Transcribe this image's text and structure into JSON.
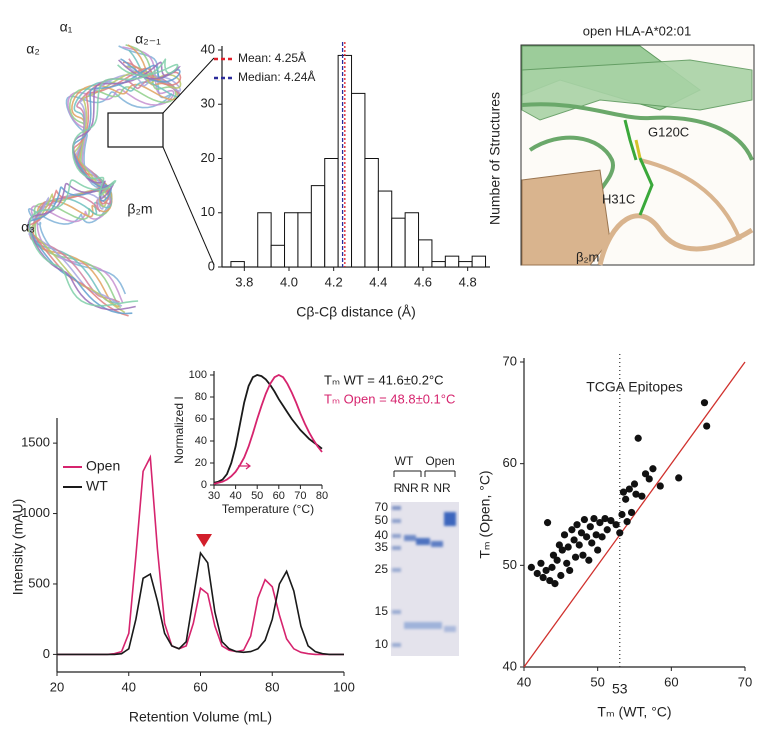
{
  "structure": {
    "labels": [
      "α₁",
      "α₂",
      "α₂₋₁",
      "α₃",
      "β₂m"
    ]
  },
  "closeup": {
    "title": "open HLA-A*02:01",
    "labels": [
      "G120C",
      "H31C",
      "β₂m"
    ]
  },
  "gel": {
    "groups": [
      "WT",
      "Open"
    ],
    "lanes": [
      "R",
      "NR",
      "R",
      "NR"
    ],
    "ladder": [
      "70",
      "50",
      "40",
      "35",
      "25",
      "15",
      "10"
    ]
  },
  "chart_data": [
    {
      "type": "histogram",
      "xlabel": "Cβ-Cβ distance (Å)",
      "ylabel": "Number of Structures",
      "bins": [
        3.74,
        3.8,
        3.86,
        3.92,
        3.98,
        4.04,
        4.1,
        4.16,
        4.22,
        4.28,
        4.34,
        4.4,
        4.46,
        4.52,
        4.58,
        4.64,
        4.7,
        4.76,
        4.82,
        4.88
      ],
      "values": [
        1,
        0,
        10,
        4,
        10,
        10,
        15,
        20,
        39,
        32,
        20,
        14,
        9,
        10,
        5,
        1,
        2,
        1,
        2
      ],
      "color": "#ffffff",
      "xlim": [
        3.7,
        4.9
      ],
      "ylim": [
        0,
        40
      ],
      "xticks": [
        3.8,
        {
          "value": 4.0,
          "label": "4.0"
        },
        4.2,
        4.4,
        4.6,
        4.8
      ],
      "yticks": [
        0,
        10,
        20,
        30,
        40
      ],
      "lines": [
        {
          "value": 4.25,
          "label": "Mean: 4.25Å",
          "color": "#e0202a"
        },
        {
          "value": 4.24,
          "label": "Median: 4.24Å",
          "color": "#2b2b9a"
        }
      ]
    },
    {
      "type": "line",
      "xlabel": "Retention Volume (mL)",
      "ylabel": "Intensity (mAU)",
      "legend": "upper left",
      "x": [
        20,
        22,
        24,
        26,
        28,
        30,
        32,
        34,
        36,
        38,
        40,
        42,
        44,
        46,
        48,
        50,
        52,
        54,
        56,
        58,
        60,
        62,
        64,
        66,
        68,
        70,
        72,
        74,
        76,
        78,
        80,
        82,
        84,
        86,
        88,
        90,
        92,
        94,
        96,
        98,
        100
      ],
      "series": [
        {
          "name": "Open",
          "color": "#d6246e",
          "values": [
            0,
            0,
            0,
            0,
            0,
            0,
            0,
            0,
            5,
            20,
            150,
            700,
            1300,
            1400,
            750,
            220,
            60,
            40,
            60,
            220,
            470,
            430,
            200,
            60,
            30,
            20,
            30,
            130,
            400,
            530,
            480,
            280,
            110,
            40,
            15,
            5,
            0,
            0,
            0,
            0,
            0
          ]
        },
        {
          "name": "WT",
          "color": "#1a1a1a",
          "values": [
            0,
            0,
            0,
            0,
            0,
            0,
            0,
            0,
            0,
            5,
            40,
            250,
            540,
            570,
            380,
            150,
            60,
            40,
            90,
            400,
            720,
            650,
            300,
            90,
            40,
            20,
            15,
            20,
            40,
            100,
            250,
            500,
            590,
            450,
            200,
            60,
            20,
            5,
            0,
            0,
            0
          ]
        }
      ],
      "xlim": [
        20,
        100
      ],
      "ylim": [
        -125,
        1650
      ],
      "xticks": [
        20,
        40,
        60,
        80,
        100
      ],
      "yticks": [
        0,
        500,
        1000,
        1500
      ]
    },
    {
      "type": "line",
      "xlabel": "Temperature (°C)",
      "ylabel": "Normalized I",
      "x": [
        30,
        32,
        34,
        36,
        38,
        40,
        42,
        44,
        46,
        48,
        50,
        52,
        54,
        56,
        58,
        60,
        62,
        64,
        66,
        68,
        70,
        72,
        74,
        76,
        78,
        80
      ],
      "series": [
        {
          "color": "#1a1a1a",
          "values": [
            2,
            3,
            5,
            10,
            20,
            35,
            55,
            75,
            90,
            98,
            100,
            99,
            96,
            91,
            85,
            78,
            72,
            66,
            60,
            55,
            50,
            46,
            42,
            39,
            36,
            33
          ]
        },
        {
          "color": "#d6246e",
          "values": [
            1,
            2,
            3,
            5,
            8,
            12,
            18,
            25,
            35,
            47,
            60,
            72,
            83,
            92,
            98,
            100,
            98,
            92,
            84,
            75,
            65,
            56,
            48,
            41,
            35,
            30
          ]
        }
      ],
      "xlim": [
        30,
        80
      ],
      "ylim": [
        0,
        100
      ],
      "xticks": [
        30,
        40,
        50,
        60,
        70,
        80
      ],
      "yticks": [
        0,
        20,
        40,
        60,
        80,
        100
      ],
      "annotations": [
        {
          "text": "Tₘ WT = 41.6±0.2°C",
          "color": "#1a1a1a"
        },
        {
          "text": "Tₘ Open = 48.8±0.1°C",
          "color": "#d6246e"
        }
      ]
    },
    {
      "type": "scatter",
      "title": "TCGA Epitopes",
      "xlabel": "Tₘ (WT, °C)",
      "ylabel": "Tₘ (Open, °C)",
      "color": "#111111",
      "x": [
        41.0,
        41.8,
        42.3,
        42.6,
        43.0,
        43.2,
        43.5,
        43.8,
        44.0,
        44.2,
        44.5,
        44.8,
        45.0,
        45.2,
        45.5,
        45.8,
        46.0,
        46.2,
        46.5,
        46.8,
        47.0,
        47.2,
        47.5,
        47.8,
        48.0,
        48.2,
        48.5,
        48.8,
        49.0,
        49.2,
        49.5,
        49.8,
        50.0,
        50.3,
        50.6,
        51.0,
        51.3,
        51.8,
        52.5,
        53.0,
        53.3,
        53.5,
        53.8,
        54.0,
        54.3,
        54.6,
        55.0,
        55.2,
        55.5,
        56.0,
        56.5,
        57.0,
        57.5,
        58.5,
        61.0,
        64.5,
        64.8
      ],
      "y": [
        49.8,
        49.2,
        50.2,
        48.8,
        49.5,
        54.2,
        48.5,
        49.8,
        51.0,
        48.2,
        50.5,
        52.0,
        49.0,
        51.5,
        53.0,
        50.2,
        51.8,
        49.5,
        53.5,
        52.5,
        50.8,
        54.0,
        52.0,
        53.2,
        51.0,
        54.5,
        52.8,
        50.5,
        53.8,
        52.2,
        54.6,
        53.0,
        51.5,
        54.2,
        52.8,
        54.6,
        53.5,
        54.4,
        54.0,
        53.2,
        55.0,
        57.2,
        56.5,
        54.3,
        57.5,
        55.2,
        58.0,
        57.0,
        62.5,
        56.8,
        59.0,
        58.5,
        59.5,
        57.8,
        58.6,
        66.0,
        63.7
      ],
      "xlim": [
        40,
        70
      ],
      "ylim": [
        40,
        70
      ],
      "xticks": [
        40,
        50,
        60,
        70
      ],
      "yticks": [
        40,
        50,
        60,
        70
      ],
      "identity_line": true,
      "identity_color": "#d0312d",
      "lines": [
        {
          "value": 53,
          "label": "53"
        }
      ]
    }
  ]
}
